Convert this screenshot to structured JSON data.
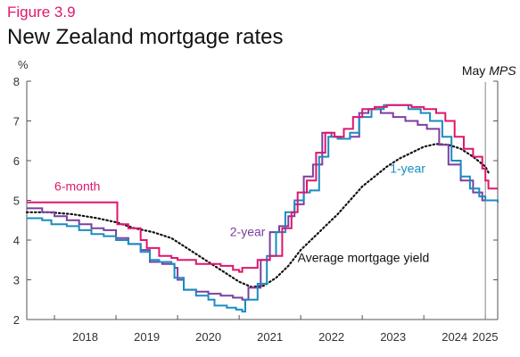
{
  "figure_label": "Figure 3.9",
  "title": "New Zealand mortgage rates",
  "chart_data": {
    "type": "line",
    "title": "New Zealand mortgage rates",
    "ylabel": "%",
    "ylim": [
      2,
      8
    ],
    "yticks": [
      "2",
      "3",
      "4",
      "5",
      "6",
      "7",
      "8"
    ],
    "xlim": [
      2017.55,
      2025.2
    ],
    "xticks": [
      "2018",
      "2019",
      "2020",
      "2021",
      "2022",
      "2023",
      "2024",
      "2025"
    ],
    "grid": false,
    "annotation": {
      "label": "May MPS",
      "label_plain": "May ",
      "label_italic": "MPS",
      "x": 2025
    },
    "series": [
      {
        "name": "6-month",
        "color": "#e0166d",
        "dashed": false,
        "points": [
          [
            2017.55,
            4.95
          ],
          [
            2019.0,
            4.95
          ],
          [
            2019.02,
            4.4
          ],
          [
            2019.2,
            4.3
          ],
          [
            2019.4,
            4.0
          ],
          [
            2019.5,
            3.8
          ],
          [
            2019.7,
            3.6
          ],
          [
            2019.9,
            3.55
          ],
          [
            2020.0,
            3.5
          ],
          [
            2020.2,
            3.5
          ],
          [
            2020.3,
            3.4
          ],
          [
            2020.5,
            3.4
          ],
          [
            2020.7,
            3.35
          ],
          [
            2020.9,
            3.25
          ],
          [
            2021.0,
            3.2
          ],
          [
            2021.05,
            3.3
          ],
          [
            2021.2,
            3.3
          ],
          [
            2021.3,
            3.5
          ],
          [
            2021.5,
            3.6
          ],
          [
            2021.7,
            4.3
          ],
          [
            2021.85,
            4.7
          ],
          [
            2021.95,
            5.2
          ],
          [
            2022.1,
            5.5
          ],
          [
            2022.25,
            6.2
          ],
          [
            2022.4,
            6.7
          ],
          [
            2022.55,
            6.6
          ],
          [
            2022.7,
            6.8
          ],
          [
            2022.85,
            7.1
          ],
          [
            2023.0,
            7.3
          ],
          [
            2023.2,
            7.35
          ],
          [
            2023.4,
            7.4
          ],
          [
            2023.6,
            7.4
          ],
          [
            2023.8,
            7.35
          ],
          [
            2024.0,
            7.3
          ],
          [
            2024.2,
            7.2
          ],
          [
            2024.35,
            7.0
          ],
          [
            2024.5,
            6.6
          ],
          [
            2024.65,
            6.3
          ],
          [
            2024.8,
            6.1
          ],
          [
            2024.95,
            5.8
          ],
          [
            2025.0,
            5.5
          ],
          [
            2025.05,
            5.3
          ],
          [
            2025.2,
            5.3
          ]
        ]
      },
      {
        "name": "1-year",
        "color": "#1a8cc1",
        "dashed": false,
        "points": [
          [
            2017.55,
            4.55
          ],
          [
            2017.8,
            4.5
          ],
          [
            2017.95,
            4.4
          ],
          [
            2018.2,
            4.35
          ],
          [
            2018.4,
            4.25
          ],
          [
            2018.6,
            4.15
          ],
          [
            2018.8,
            4.1
          ],
          [
            2019.0,
            4.0
          ],
          [
            2019.2,
            3.9
          ],
          [
            2019.4,
            3.7
          ],
          [
            2019.55,
            3.5
          ],
          [
            2019.7,
            3.45
          ],
          [
            2019.9,
            3.4
          ],
          [
            2019.95,
            3.05
          ],
          [
            2020.1,
            2.75
          ],
          [
            2020.3,
            2.6
          ],
          [
            2020.5,
            2.5
          ],
          [
            2020.6,
            2.35
          ],
          [
            2020.8,
            2.3
          ],
          [
            2020.95,
            2.25
          ],
          [
            2021.05,
            2.2
          ],
          [
            2021.1,
            2.5
          ],
          [
            2021.3,
            2.9
          ],
          [
            2021.45,
            3.6
          ],
          [
            2021.6,
            4.2
          ],
          [
            2021.75,
            4.7
          ],
          [
            2021.9,
            5.0
          ],
          [
            2022.05,
            5.2
          ],
          [
            2022.15,
            5.25
          ],
          [
            2022.3,
            6.1
          ],
          [
            2022.45,
            6.6
          ],
          [
            2022.6,
            6.55
          ],
          [
            2022.8,
            6.7
          ],
          [
            2022.95,
            7.1
          ],
          [
            2023.15,
            7.3
          ],
          [
            2023.35,
            7.4
          ],
          [
            2023.55,
            7.4
          ],
          [
            2023.75,
            7.3
          ],
          [
            2023.95,
            7.2
          ],
          [
            2024.1,
            7.0
          ],
          [
            2024.3,
            6.6
          ],
          [
            2024.45,
            6.0
          ],
          [
            2024.6,
            5.6
          ],
          [
            2024.75,
            5.3
          ],
          [
            2024.9,
            5.1
          ],
          [
            2025.0,
            5.0
          ],
          [
            2025.2,
            4.95
          ]
        ]
      },
      {
        "name": "2-year",
        "color": "#7b3fa0",
        "dashed": false,
        "points": [
          [
            2017.55,
            4.8
          ],
          [
            2017.8,
            4.7
          ],
          [
            2018.0,
            4.6
          ],
          [
            2018.2,
            4.5
          ],
          [
            2018.4,
            4.4
          ],
          [
            2018.6,
            4.3
          ],
          [
            2018.8,
            4.25
          ],
          [
            2019.0,
            4.05
          ],
          [
            2019.2,
            3.9
          ],
          [
            2019.4,
            3.75
          ],
          [
            2019.55,
            3.45
          ],
          [
            2019.75,
            3.4
          ],
          [
            2019.95,
            3.3
          ],
          [
            2020.0,
            3.0
          ],
          [
            2020.1,
            2.75
          ],
          [
            2020.3,
            2.7
          ],
          [
            2020.5,
            2.65
          ],
          [
            2020.7,
            2.6
          ],
          [
            2020.9,
            2.55
          ],
          [
            2021.05,
            2.5
          ],
          [
            2021.15,
            2.8
          ],
          [
            2021.35,
            3.5
          ],
          [
            2021.5,
            4.2
          ],
          [
            2021.65,
            4.35
          ],
          [
            2021.8,
            4.6
          ],
          [
            2021.9,
            4.9
          ],
          [
            2022.05,
            5.6
          ],
          [
            2022.2,
            5.9
          ],
          [
            2022.35,
            6.7
          ],
          [
            2022.5,
            6.6
          ],
          [
            2022.65,
            6.55
          ],
          [
            2022.8,
            6.6
          ],
          [
            2022.95,
            7.2
          ],
          [
            2023.1,
            7.3
          ],
          [
            2023.3,
            7.2
          ],
          [
            2023.5,
            7.1
          ],
          [
            2023.7,
            7.0
          ],
          [
            2023.9,
            6.9
          ],
          [
            2024.05,
            6.8
          ],
          [
            2024.25,
            6.4
          ],
          [
            2024.4,
            5.9
          ],
          [
            2024.6,
            5.5
          ],
          [
            2024.8,
            5.2
          ],
          [
            2024.95,
            5.0
          ],
          [
            2025.2,
            4.95
          ]
        ]
      },
      {
        "name": "Average mortgage yield",
        "color": "#111111",
        "dashed": true,
        "points": [
          [
            2017.55,
            4.7
          ],
          [
            2017.9,
            4.7
          ],
          [
            2018.3,
            4.65
          ],
          [
            2018.7,
            4.55
          ],
          [
            2019.0,
            4.45
          ],
          [
            2019.3,
            4.3
          ],
          [
            2019.6,
            4.2
          ],
          [
            2019.9,
            4.05
          ],
          [
            2020.2,
            3.75
          ],
          [
            2020.5,
            3.45
          ],
          [
            2020.8,
            3.15
          ],
          [
            2021.0,
            2.95
          ],
          [
            2021.2,
            2.82
          ],
          [
            2021.4,
            2.85
          ],
          [
            2021.6,
            3.05
          ],
          [
            2021.8,
            3.35
          ],
          [
            2022.0,
            3.75
          ],
          [
            2022.2,
            4.05
          ],
          [
            2022.4,
            4.35
          ],
          [
            2022.6,
            4.65
          ],
          [
            2022.8,
            5.0
          ],
          [
            2023.0,
            5.35
          ],
          [
            2023.2,
            5.6
          ],
          [
            2023.4,
            5.85
          ],
          [
            2023.6,
            6.05
          ],
          [
            2023.8,
            6.2
          ],
          [
            2024.0,
            6.35
          ],
          [
            2024.2,
            6.42
          ],
          [
            2024.4,
            6.4
          ],
          [
            2024.6,
            6.3
          ],
          [
            2024.8,
            6.1
          ],
          [
            2025.0,
            5.85
          ],
          [
            2025.05,
            5.7
          ]
        ]
      }
    ],
    "labels": [
      {
        "series": "6-month",
        "text": "6-month",
        "x": 2018.0,
        "y": 5.25
      },
      {
        "series": "1-year",
        "text": "1-year",
        "x": 2023.45,
        "y": 5.7
      },
      {
        "series": "2-year",
        "text": "2-year",
        "x": 2020.85,
        "y": 4.1
      },
      {
        "series": "Average mortgage yield",
        "text": "Average mortgage yield",
        "x": 2021.95,
        "y": 3.45
      }
    ]
  }
}
